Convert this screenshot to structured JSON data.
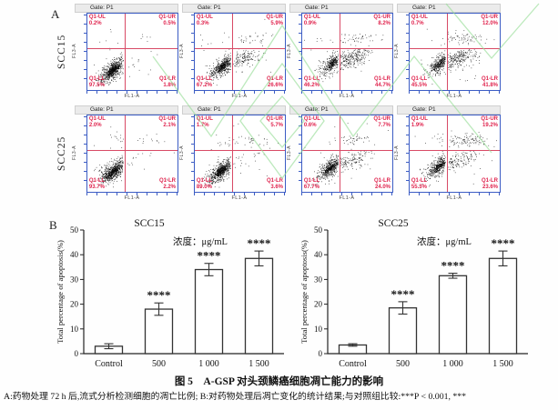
{
  "panel_a": {
    "label": "A",
    "gate_label": "Gate: P1",
    "x_axis_label": "FL1-A",
    "y_axis_label": "FL3-A",
    "quadrant_names": {
      "ul": "Q1-UL",
      "ur": "Q1-UR",
      "ll": "Q1-LL",
      "lr": "Q1-LR"
    },
    "rows": [
      {
        "cell_line": "SCC15",
        "plots": [
          {
            "ul": 0.2,
            "ur": 0.5,
            "ll": 97.5,
            "lr": 1.8
          },
          {
            "ul": 0.3,
            "ur": 5.9,
            "ll": 67.2,
            "lr": 26.6
          },
          {
            "ul": 0.9,
            "ur": 8.2,
            "ll": 46.2,
            "lr": 44.7
          },
          {
            "ul": 0.7,
            "ur": 12.0,
            "ll": 45.5,
            "lr": 41.8
          }
        ]
      },
      {
        "cell_line": "SCC25",
        "plots": [
          {
            "ul": 2.0,
            "ur": 2.1,
            "ll": 93.7,
            "lr": 2.2
          },
          {
            "ul": 1.7,
            "ur": 5.7,
            "ll": 89.0,
            "lr": 3.6
          },
          {
            "ul": 0.6,
            "ur": 7.7,
            "ll": 67.7,
            "lr": 24.0
          },
          {
            "ul": 1.9,
            "ur": 19.2,
            "ll": 55.3,
            "lr": 23.6
          }
        ]
      }
    ]
  },
  "panel_b": {
    "label": "B"
  },
  "chart_data": [
    {
      "type": "bar",
      "title": "SCC15",
      "annotation": "浓度：μg/mL",
      "categories": [
        "Control",
        "500",
        "1 000",
        "1 500"
      ],
      "values": [
        3,
        18,
        34,
        38.5
      ],
      "errors": [
        1,
        2.5,
        2.5,
        3
      ],
      "significance": [
        "",
        "****",
        "****",
        "****"
      ],
      "xlabel": "",
      "ylabel": "Total percentage of apoptosis(%)",
      "ylim": [
        0,
        50
      ],
      "yticks": [
        0,
        10,
        20,
        30,
        40,
        50
      ],
      "grid": false,
      "legend": "none"
    },
    {
      "type": "bar",
      "title": "SCC25",
      "annotation": "浓度：μg/mL",
      "categories": [
        "Control",
        "500",
        "1 000",
        "1 500"
      ],
      "values": [
        3.5,
        18.5,
        31.5,
        38.5
      ],
      "errors": [
        0.5,
        2.5,
        1,
        3
      ],
      "significance": [
        "",
        "****",
        "****",
        "****"
      ],
      "xlabel": "",
      "ylabel": "Total percentage of apoptosis(%)",
      "ylim": [
        0,
        50
      ],
      "yticks": [
        0,
        10,
        20,
        30,
        40,
        50
      ],
      "grid": false,
      "legend": "none"
    }
  ],
  "caption": "图 5　A-GSP 对头颈鳞癌细胞凋亡能力的影响",
  "footnote": "A:药物处理 72 h 后,流式分析检测细胞的凋亡比例; B:对药物处理后凋亡变化的统计结果;与对照组比较:***P < 0.001, ***"
}
